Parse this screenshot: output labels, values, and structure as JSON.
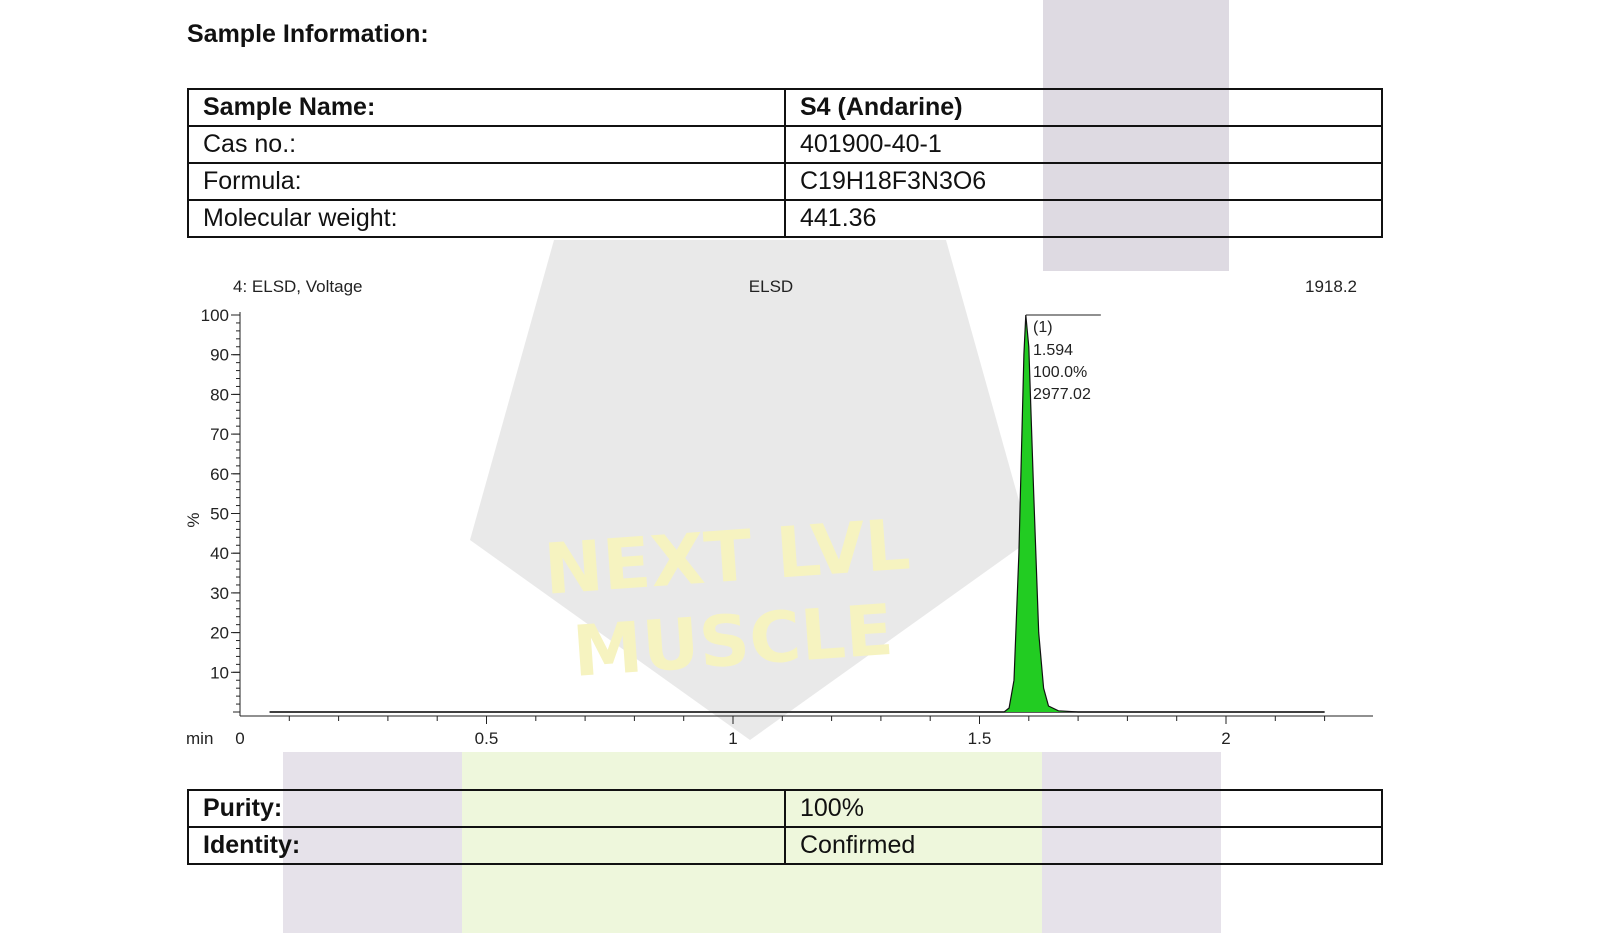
{
  "header": {
    "title": "Sample Information:"
  },
  "sample_table": [
    {
      "label": "Sample Name:",
      "value": "S4 (Andarine)",
      "bold": true
    },
    {
      "label": "Cas no.:",
      "value": "401900-40-1"
    },
    {
      "label": "Formula:",
      "value": "C19H18F3N3O6"
    },
    {
      "label": "Molecular weight:",
      "value": "441.36"
    }
  ],
  "result_table": [
    {
      "label": "Purity:",
      "value": "100%"
    },
    {
      "label": "Identity:",
      "value": "Confirmed"
    }
  ],
  "watermark": {
    "line1": "NEXT LVL",
    "line2": "MUSCLE"
  },
  "chart_data": {
    "type": "line",
    "header_left": "4: ELSD, Voltage",
    "header_center": "ELSD",
    "header_right": "1918.2",
    "xlabel": "min",
    "ylabel": "%",
    "xlim": [
      0,
      2.3
    ],
    "ylim": [
      0,
      100
    ],
    "xticks": [
      0,
      0.5,
      1,
      1.5,
      2
    ],
    "yticks": [
      10,
      20,
      30,
      40,
      50,
      60,
      70,
      80,
      90,
      100
    ],
    "fill_color": "#22cc22",
    "series": [
      {
        "x": [
          0.06,
          1.55,
          1.56,
          1.57,
          1.58,
          1.59,
          1.594,
          1.6,
          1.61,
          1.62,
          1.63,
          1.64,
          1.66,
          1.7,
          2.2
        ],
        "y": [
          0,
          0,
          1,
          8,
          40,
          90,
          100,
          92,
          55,
          20,
          6,
          1.5,
          0.3,
          0,
          0
        ]
      }
    ],
    "peak_annotation": {
      "label": "(1)",
      "rt": "1.594",
      "area_pct": "100.0%",
      "area": "2977.02",
      "x": 1.594,
      "y": 100
    }
  }
}
